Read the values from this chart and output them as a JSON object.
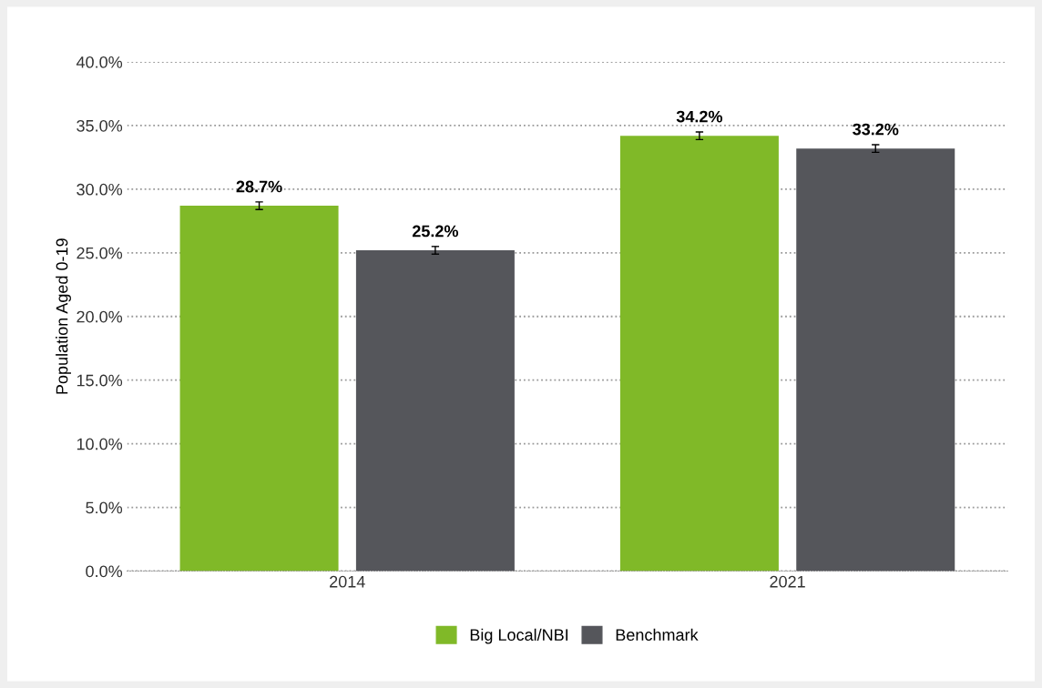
{
  "chart_data": {
    "type": "bar",
    "ylabel": "Population Aged 0-19",
    "categories": [
      "2014",
      "2021"
    ],
    "series": [
      {
        "name": "Big Local/NBI",
        "color": "#80b928",
        "values": [
          28.7,
          34.2
        ],
        "errors": [
          0.3,
          0.3
        ],
        "value_labels": [
          "28.7%",
          "34.2%"
        ]
      },
      {
        "name": "Benchmark",
        "color": "#55565b",
        "values": [
          25.2,
          33.2
        ],
        "errors": [
          0.3,
          0.3
        ],
        "value_labels": [
          "25.2%",
          "33.2%"
        ]
      }
    ],
    "ylim": [
      0,
      40
    ],
    "yticks": [
      {
        "value": 0,
        "label": "0.0%"
      },
      {
        "value": 5,
        "label": "5.0%"
      },
      {
        "value": 10,
        "label": "10.0%"
      },
      {
        "value": 15,
        "label": "15.0%"
      },
      {
        "value": 20,
        "label": "20.0%"
      },
      {
        "value": 25,
        "label": "25.0%"
      },
      {
        "value": 30,
        "label": "30.0%"
      },
      {
        "value": 35,
        "label": "35.0%"
      },
      {
        "value": 40,
        "label": "40.0%"
      }
    ],
    "grid": "y",
    "legend": "bottom"
  }
}
